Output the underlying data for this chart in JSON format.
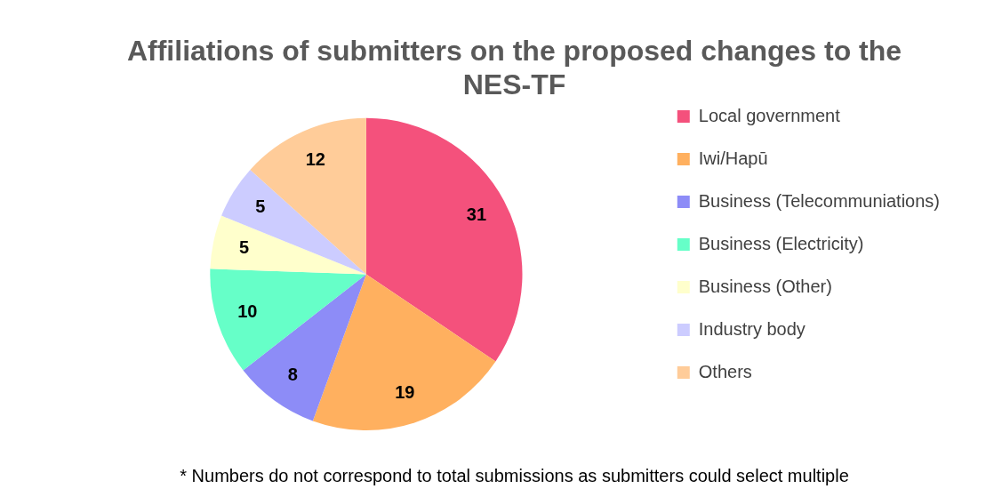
{
  "chart_data": {
    "type": "pie",
    "title": "Affiliations of submitters on the proposed changes to the NES-TF",
    "categories": [
      "Local government",
      "Iwi/Hapū",
      "Business (Telecommuniations)",
      "Business (Electricity)",
      "Business (Other)",
      "Industry body",
      "Others"
    ],
    "values": [
      31,
      19,
      8,
      10,
      5,
      5,
      12
    ],
    "colors": [
      "#f4517c",
      "#ffb05f",
      "#8d8cf7",
      "#66ffc8",
      "#ffffcc",
      "#ccccff",
      "#ffcc99"
    ],
    "data_labels": true,
    "legend": "right",
    "annotations": [
      "* Numbers do not correspond to total submissions as submitters could select multiple"
    ]
  }
}
